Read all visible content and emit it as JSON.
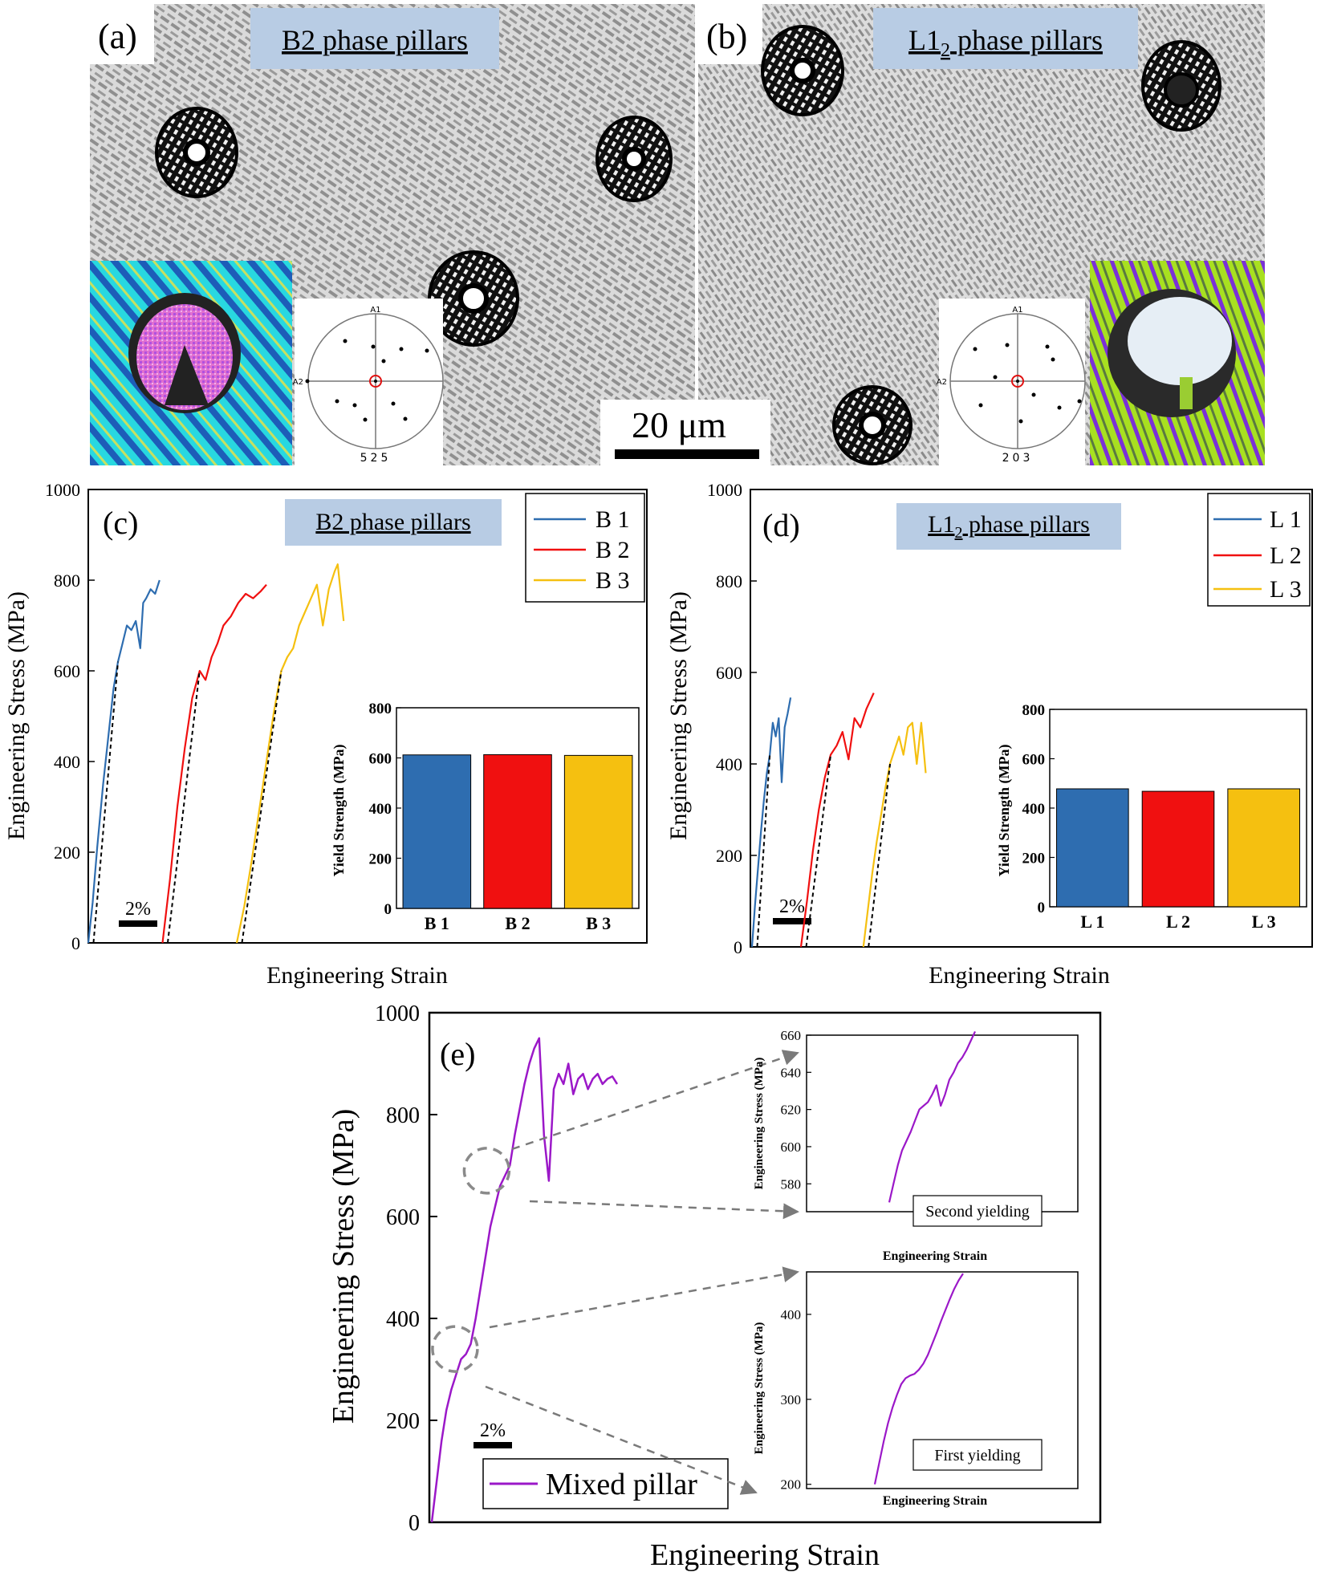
{
  "panels": {
    "a": {
      "letter": "(a)",
      "title": "B2 phase pillars",
      "pole_label": "525",
      "pole_axis_top": "A1",
      "pole_axis_left": "A2"
    },
    "b": {
      "letter": "(b)",
      "title_pre": "L1",
      "title_sub": "2",
      "title_post": " phase pillars",
      "pole_label": "203",
      "pole_axis_top": "A1",
      "pole_axis_left": "A2"
    },
    "scale_bar": "20 μm"
  },
  "colors": {
    "blue": "#2e6db0",
    "red": "#f01010",
    "yellow": "#f5c010",
    "purple": "#9b18c8",
    "title_box": "#b8cce4",
    "micro_bg": "#dcdcdc",
    "micro_line": "#8c8c8c"
  },
  "chart_data": [
    {
      "id": "c",
      "type": "line",
      "letter": "(c)",
      "title": "B2 phase pillars",
      "xlabel": "Engineering Strain",
      "ylabel": "Engineering Stress (MPa)",
      "ylim": [
        0,
        1000
      ],
      "yticks": [
        "0",
        "200",
        "400",
        "600",
        "800",
        "1000"
      ],
      "strain_scalebar": "2%",
      "series": [
        {
          "name": "B 1",
          "offset": 0,
          "elastic_end": [
            2.0,
            620
          ],
          "ultimate": [
            4.8,
            800
          ],
          "x": [
            0,
            0.3,
            0.6,
            1.0,
            1.4,
            1.7,
            2.0,
            2.3,
            2.6,
            2.9,
            3.2,
            3.5,
            3.7,
            3.9,
            4.2,
            4.5,
            4.8
          ],
          "y": [
            0,
            90,
            210,
            350,
            470,
            560,
            620,
            660,
            700,
            690,
            710,
            650,
            750,
            760,
            780,
            770,
            800
          ]
        },
        {
          "name": "B 2",
          "offset": 5.0,
          "elastic_end": [
            2.5,
            600
          ],
          "ultimate": [
            7.0,
            790
          ],
          "x": [
            0,
            0.5,
            1.0,
            1.5,
            2.0,
            2.5,
            2.9,
            3.3,
            3.7,
            4.1,
            4.6,
            5.1,
            5.6,
            6.1,
            6.6,
            7.0
          ],
          "y": [
            0,
            140,
            300,
            430,
            540,
            600,
            580,
            630,
            660,
            700,
            720,
            750,
            770,
            760,
            775,
            790
          ]
        },
        {
          "name": "B 3",
          "offset": 10.0,
          "elastic_end": [
            3.0,
            600
          ],
          "ultimate": [
            6.8,
            835
          ],
          "x": [
            0,
            0.5,
            1.0,
            1.5,
            2.0,
            2.5,
            3.0,
            3.4,
            3.8,
            4.2,
            4.6,
            5.0,
            5.4,
            5.8,
            6.2,
            6.6,
            6.8,
            7.2
          ],
          "y": [
            0,
            80,
            180,
            290,
            400,
            510,
            600,
            630,
            650,
            700,
            730,
            760,
            790,
            700,
            780,
            820,
            835,
            710
          ]
        }
      ],
      "inset": {
        "type": "bar",
        "ylabel": "Yield Strength (MPa)",
        "ylim": [
          0,
          800
        ],
        "yticks": [
          "0",
          "200",
          "400",
          "600",
          "800"
        ],
        "categories": [
          "B 1",
          "B 2",
          "B 3"
        ],
        "values": [
          612,
          613,
          610
        ]
      }
    },
    {
      "id": "d",
      "type": "line",
      "letter": "(d)",
      "title_pre": "L1",
      "title_sub": "2",
      "title_post": " phase pillars",
      "xlabel": "Engineering Strain",
      "ylabel": "Engineering Stress (MPa)",
      "ylim": [
        0,
        1000
      ],
      "yticks": [
        "0",
        "200",
        "400",
        "600",
        "800",
        "1000"
      ],
      "strain_scalebar": "2%",
      "series": [
        {
          "name": "L 1",
          "offset": 0,
          "elastic_end": [
            1.2,
            420
          ],
          "ultimate": [
            2.6,
            545
          ],
          "x": [
            0,
            0.2,
            0.4,
            0.6,
            0.8,
            1.0,
            1.2,
            1.4,
            1.6,
            1.8,
            2.0,
            2.2,
            2.4,
            2.6
          ],
          "y": [
            0,
            90,
            170,
            250,
            320,
            380,
            420,
            490,
            460,
            500,
            360,
            480,
            510,
            545
          ]
        },
        {
          "name": "L 2",
          "offset": 3.3,
          "elastic_end": [
            2.0,
            420
          ],
          "ultimate": [
            4.9,
            555
          ],
          "x": [
            0,
            0.4,
            0.8,
            1.2,
            1.6,
            2.0,
            2.4,
            2.8,
            3.2,
            3.6,
            4.0,
            4.4,
            4.9
          ],
          "y": [
            0,
            100,
            210,
            300,
            370,
            420,
            440,
            470,
            410,
            500,
            480,
            520,
            555
          ]
        },
        {
          "name": "L 3",
          "offset": 7.5,
          "elastic_end": [
            1.8,
            400
          ],
          "ultimate": [
            3.9,
            490
          ],
          "x": [
            0,
            0.3,
            0.6,
            0.9,
            1.2,
            1.5,
            1.8,
            2.1,
            2.4,
            2.7,
            3.0,
            3.3,
            3.6,
            3.9,
            4.2
          ],
          "y": [
            0,
            80,
            160,
            230,
            290,
            350,
            400,
            430,
            460,
            420,
            480,
            490,
            400,
            490,
            380
          ]
        }
      ],
      "inset": {
        "type": "bar",
        "ylabel": "Yield Strength (MPa)",
        "ylim": [
          0,
          800
        ],
        "yticks": [
          "0",
          "200",
          "400",
          "600",
          "800"
        ],
        "categories": [
          "L 1",
          "L 2",
          "L 3"
        ],
        "values": [
          478,
          468,
          478
        ]
      }
    },
    {
      "id": "e",
      "type": "line",
      "letter": "(e)",
      "xlabel": "Engineering Strain",
      "ylabel": "Engineering Stress (MPa)",
      "ylim": [
        0,
        1000
      ],
      "yticks": [
        "0",
        "200",
        "400",
        "600",
        "800",
        "1000"
      ],
      "strain_scalebar": "2%",
      "series": [
        {
          "name": "Mixed pillar",
          "offset": 0,
          "x": [
            0,
            0.4,
            0.8,
            1.2,
            1.6,
            2.0,
            2.4,
            2.8,
            3.2,
            3.6,
            4.0,
            4.4,
            4.8,
            5.2,
            5.6,
            6.0,
            6.4,
            6.8,
            7.2,
            7.6,
            8.0,
            8.4,
            8.8,
            9.2,
            9.6,
            10.0,
            10.4,
            10.8,
            11.2,
            11.6,
            12.0,
            12.4,
            12.8,
            13.2,
            13.6,
            14.0,
            14.4,
            14.8,
            15.2
          ],
          "y": [
            0,
            80,
            160,
            220,
            260,
            290,
            320,
            330,
            350,
            400,
            460,
            520,
            580,
            620,
            660,
            680,
            700,
            760,
            810,
            860,
            900,
            930,
            950,
            760,
            670,
            850,
            880,
            860,
            900,
            840,
            870,
            880,
            850,
            870,
            880,
            860,
            870,
            875,
            860
          ]
        }
      ],
      "circles": [
        {
          "x": 1.9,
          "y": 340
        },
        {
          "x": 4.5,
          "y": 690
        }
      ],
      "insets": [
        {
          "type": "line",
          "title": "Second yielding",
          "xlabel": "Engineering Strain",
          "ylabel": "Engineering Stress (MPa)",
          "ylim": [
            565,
            660
          ],
          "yticks": [
            "580",
            "600",
            "620",
            "640",
            "660"
          ],
          "x": [
            0,
            0.05,
            0.1,
            0.15,
            0.2,
            0.25,
            0.3,
            0.35,
            0.4,
            0.45,
            0.5,
            0.55,
            0.6,
            0.65,
            0.7,
            0.75,
            0.8,
            0.85,
            0.9,
            0.95,
            1.0
          ],
          "y": [
            570,
            580,
            590,
            598,
            603,
            608,
            614,
            620,
            622,
            624,
            628,
            633,
            622,
            628,
            636,
            640,
            645,
            648,
            652,
            657,
            662
          ]
        },
        {
          "type": "line",
          "title": "First yielding",
          "xlabel": "Engineering Strain",
          "ylabel": "Engineering Stress (MPa)",
          "ylim": [
            195,
            450
          ],
          "yticks": [
            "200",
            "300",
            "400"
          ],
          "x": [
            0,
            0.05,
            0.1,
            0.15,
            0.2,
            0.25,
            0.3,
            0.35,
            0.4,
            0.45,
            0.5,
            0.55,
            0.6,
            0.65,
            0.7,
            0.75,
            0.8,
            0.85,
            0.9,
            0.95,
            1.0
          ],
          "y": [
            200,
            225,
            250,
            272,
            290,
            305,
            318,
            325,
            328,
            330,
            335,
            342,
            352,
            365,
            378,
            392,
            405,
            418,
            430,
            440,
            448
          ]
        }
      ]
    }
  ]
}
